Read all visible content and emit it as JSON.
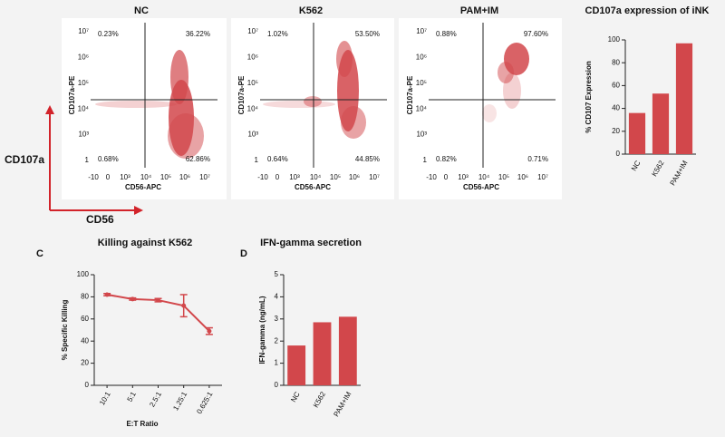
{
  "flow": {
    "panels": [
      {
        "title": "NC",
        "quadrants": [
          "0.23%",
          "36.22%",
          "0.68%",
          "62.86%"
        ]
      },
      {
        "title": "K562",
        "quadrants": [
          "1.02%",
          "53.50%",
          "0.64%",
          "44.85%"
        ]
      },
      {
        "title": "PAM+IM",
        "quadrants": [
          "0.88%",
          "97.60%",
          "0.82%",
          "0.71%"
        ]
      }
    ],
    "y_label": "CD107a-PE",
    "x_label": "CD56-APC",
    "ytick_labels": [
      "10⁷",
      "10⁶",
      "10⁵",
      "10⁴",
      "10³",
      "1"
    ],
    "xtick_labels": [
      "-10",
      "0",
      "10³",
      "10⁴",
      "10⁵",
      "10⁶",
      "10⁷"
    ]
  },
  "axis_labels": {
    "y": "CD107a",
    "x": "CD56"
  },
  "chart_data": [
    {
      "type": "bar",
      "title": "CD107a expression of iNK",
      "categories": [
        "NC",
        "K562",
        "PAM+IM"
      ],
      "values": [
        36,
        53,
        97
      ],
      "color": "#d2474b",
      "ylim": [
        0,
        100
      ],
      "yticks": [
        0,
        20,
        40,
        60,
        80,
        100
      ],
      "y_label": "% CD107 Expression"
    },
    {
      "type": "line",
      "panel_label": "C",
      "title": "Killing against K562",
      "categories": [
        "10:1",
        "5:1",
        "2.5:1",
        "1.25:1",
        "0.625:1"
      ],
      "values": [
        82,
        78,
        77,
        72,
        49
      ],
      "errors": [
        1,
        1,
        1.5,
        10,
        3
      ],
      "color": "#d2474b",
      "ylim": [
        0,
        100
      ],
      "yticks": [
        0,
        20,
        40,
        60,
        80,
        100
      ],
      "y_label": "% Specific Killing",
      "x_label": "E:T Ratio"
    },
    {
      "type": "bar",
      "panel_label": "D",
      "title": "IFN-gamma secretion",
      "categories": [
        "NC",
        "K562",
        "PAM+IM"
      ],
      "values": [
        1.8,
        2.85,
        3.1
      ],
      "color": "#d2474b",
      "ylim": [
        0,
        5
      ],
      "yticks": [
        0,
        1,
        2,
        3,
        4,
        5
      ],
      "y_label": "IFN-gamma (ng/mL)"
    }
  ]
}
